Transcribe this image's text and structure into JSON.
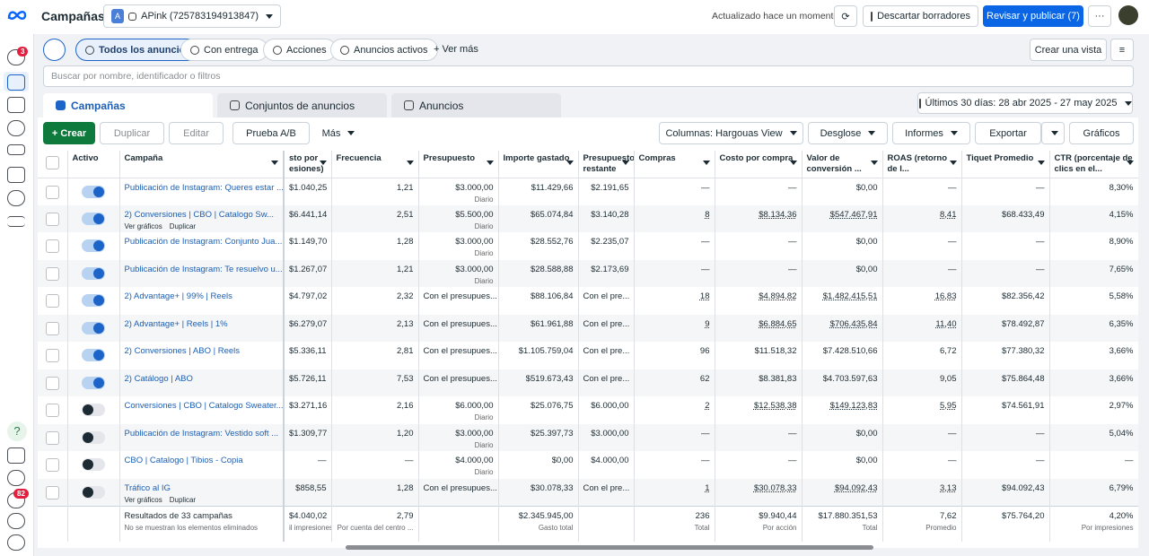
{
  "header": {
    "title": "Campañas",
    "account_initial": "A",
    "account": "APink (725783194913847)",
    "updated": "Actualizado hace un momento",
    "discard": "Descartar borradores",
    "publish": "Revisar y publicar (7)",
    "more": "···"
  },
  "sidebar": {
    "badge_top": "3",
    "badge_bottom": "82",
    "help": "?"
  },
  "filters": {
    "pills": [
      "Todos los anuncios",
      "Con entrega",
      "Acciones",
      "Anuncios activos"
    ],
    "more": "+ Ver más",
    "create_view": "Crear una vista",
    "search_placeholder": "Buscar por nombre, identificador o filtros"
  },
  "tabs": [
    "Campañas",
    "Conjuntos de anuncios",
    "Anuncios"
  ],
  "date_range": "Últimos 30 días: 28 abr 2025 - 27 may 2025",
  "toolbar": {
    "create": "+ Crear",
    "duplicate": "Duplicar",
    "edit": "Editar",
    "ab_test": "Prueba A/B",
    "more": "Más",
    "columns": "Columnas: Hargouas View",
    "breakdown": "Desglose",
    "reports": "Informes",
    "export": "Exportar",
    "charts": "Gráficos"
  },
  "table": {
    "columns": [
      "Activo",
      "Campaña",
      "sto por esiones)",
      "Frecuencia",
      "Presupuesto",
      "Importe gastado",
      "Presupuesto restante",
      "Compras",
      "Costo por compra",
      "Valor de conversión ...",
      "ROAS (retorno de l...",
      "Tiquet Promedio",
      "CTR (porcentaje de clics en el..."
    ],
    "rows": [
      {
        "active": true,
        "name": "Publicación de Instagram: Queres estar ...",
        "cells": [
          "$1.040,25",
          "1,21",
          "$3.000,00",
          "$11.429,66",
          "$2.191,65",
          "—",
          "—",
          "$0,00",
          "—",
          "—",
          "8,30%"
        ],
        "budget_note": "Diario"
      },
      {
        "active": true,
        "name": "2) Conversiones | CBO | Catalogo Sw...",
        "cells": [
          "$6.441,14",
          "2,51",
          "$5.500,00",
          "$65.074,84",
          "$3.140,28",
          "8",
          "$8.134,36",
          "$547.467,91",
          "8,41",
          "$68.433,49",
          "4,15%"
        ],
        "budget_note": "Diario",
        "actions": [
          "Ver gráficos",
          "Duplicar"
        ],
        "dotted": true
      },
      {
        "active": true,
        "name": "Publicación de Instagram: Conjunto Jua...",
        "cells": [
          "$1.149,70",
          "1,28",
          "$3.000,00",
          "$28.552,76",
          "$2.235,07",
          "—",
          "—",
          "$0,00",
          "—",
          "—",
          "8,90%"
        ],
        "budget_note": "Diario"
      },
      {
        "active": true,
        "name": "Publicación de Instagram: Te resuelvo u...",
        "cells": [
          "$1.267,07",
          "1,21",
          "$3.000,00",
          "$28.588,88",
          "$2.173,69",
          "—",
          "—",
          "$0,00",
          "—",
          "—",
          "7,65%"
        ],
        "budget_note": "Diario"
      },
      {
        "active": true,
        "name": "2) Advantage+ | 99% | Reels",
        "cells": [
          "$4.797,02",
          "2,32",
          "Con el presupues...",
          "$88.106,84",
          "Con el pre...",
          "18",
          "$4.894,82",
          "$1.482.415,51",
          "16,83",
          "$82.356,42",
          "5,58%"
        ],
        "dotted": true
      },
      {
        "active": true,
        "name": "2) Advantage+ | Reels | 1%",
        "cells": [
          "$6.279,07",
          "2,13",
          "Con el presupues...",
          "$61.961,88",
          "Con el pre...",
          "9",
          "$6.884,65",
          "$706.435,84",
          "11,40",
          "$78.492,87",
          "6,35%"
        ],
        "dotted": true
      },
      {
        "active": true,
        "name": "2) Conversiones | ABO | Reels",
        "cells": [
          "$5.336,11",
          "2,81",
          "Con el presupues...",
          "$1.105.759,04",
          "Con el pre...",
          "96",
          "$11.518,32",
          "$7.428.510,66",
          "6,72",
          "$77.380,32",
          "3,66%"
        ]
      },
      {
        "active": true,
        "name": "2) Catálogo | ABO",
        "cells": [
          "$5.726,11",
          "7,53",
          "Con el presupues...",
          "$519.673,43",
          "Con el pre...",
          "62",
          "$8.381,83",
          "$4.703.597,63",
          "9,05",
          "$75.864,48",
          "3,66%"
        ]
      },
      {
        "active": false,
        "name": "Conversiones | CBO | Catalogo Sweater...",
        "cells": [
          "$3.271,16",
          "2,16",
          "$6.000,00",
          "$25.076,75",
          "$6.000,00",
          "2",
          "$12.538,38",
          "$149.123,83",
          "5,95",
          "$74.561,91",
          "2,97%"
        ],
        "budget_note": "Diario",
        "dotted": true
      },
      {
        "active": false,
        "name": "Publicación de Instagram: Vestido soft ...",
        "cells": [
          "$1.309,77",
          "1,20",
          "$3.000,00",
          "$25.397,73",
          "$3.000,00",
          "—",
          "—",
          "$0,00",
          "—",
          "—",
          "5,04%"
        ],
        "budget_note": "Diario"
      },
      {
        "active": false,
        "name": "CBO | Catalogo | Tibios - Copia",
        "cells": [
          "—",
          "—",
          "$4.000,00",
          "$0,00",
          "$4.000,00",
          "—",
          "—",
          "$0,00",
          "—",
          "—",
          "—"
        ],
        "budget_note": "Diario"
      },
      {
        "active": false,
        "name": "Tráfico al IG",
        "cells": [
          "$858,55",
          "1,28",
          "Con el presupues...",
          "$30.078,33",
          "Con el pre...",
          "1",
          "$30.078,33",
          "$94.092,43",
          "3,13",
          "$94.092,43",
          "6,79%"
        ],
        "actions": [
          "Ver gráficos",
          "Duplicar"
        ],
        "dotted": true
      }
    ],
    "footer": {
      "title": "Resultados de 33 campañas",
      "note": "No se muestran los elementos eliminados",
      "cells": [
        {
          "value": "$4.040,02",
          "sub": "il impresiones"
        },
        {
          "value": "2,79",
          "sub": "Por cuenta del centro ..."
        },
        {},
        {
          "value": "$2.345.945,00",
          "sub": "Gasto total"
        },
        {},
        {
          "value": "236",
          "sub": "Total"
        },
        {
          "value": "$9.940,44",
          "sub": "Por acción"
        },
        {
          "value": "$17.880.351,53",
          "sub": "Total"
        },
        {
          "value": "7,62",
          "sub": "Promedio"
        },
        {
          "value": "$75.764,20"
        },
        {
          "value": "4,20%",
          "sub": "Por impresiones"
        }
      ]
    }
  }
}
